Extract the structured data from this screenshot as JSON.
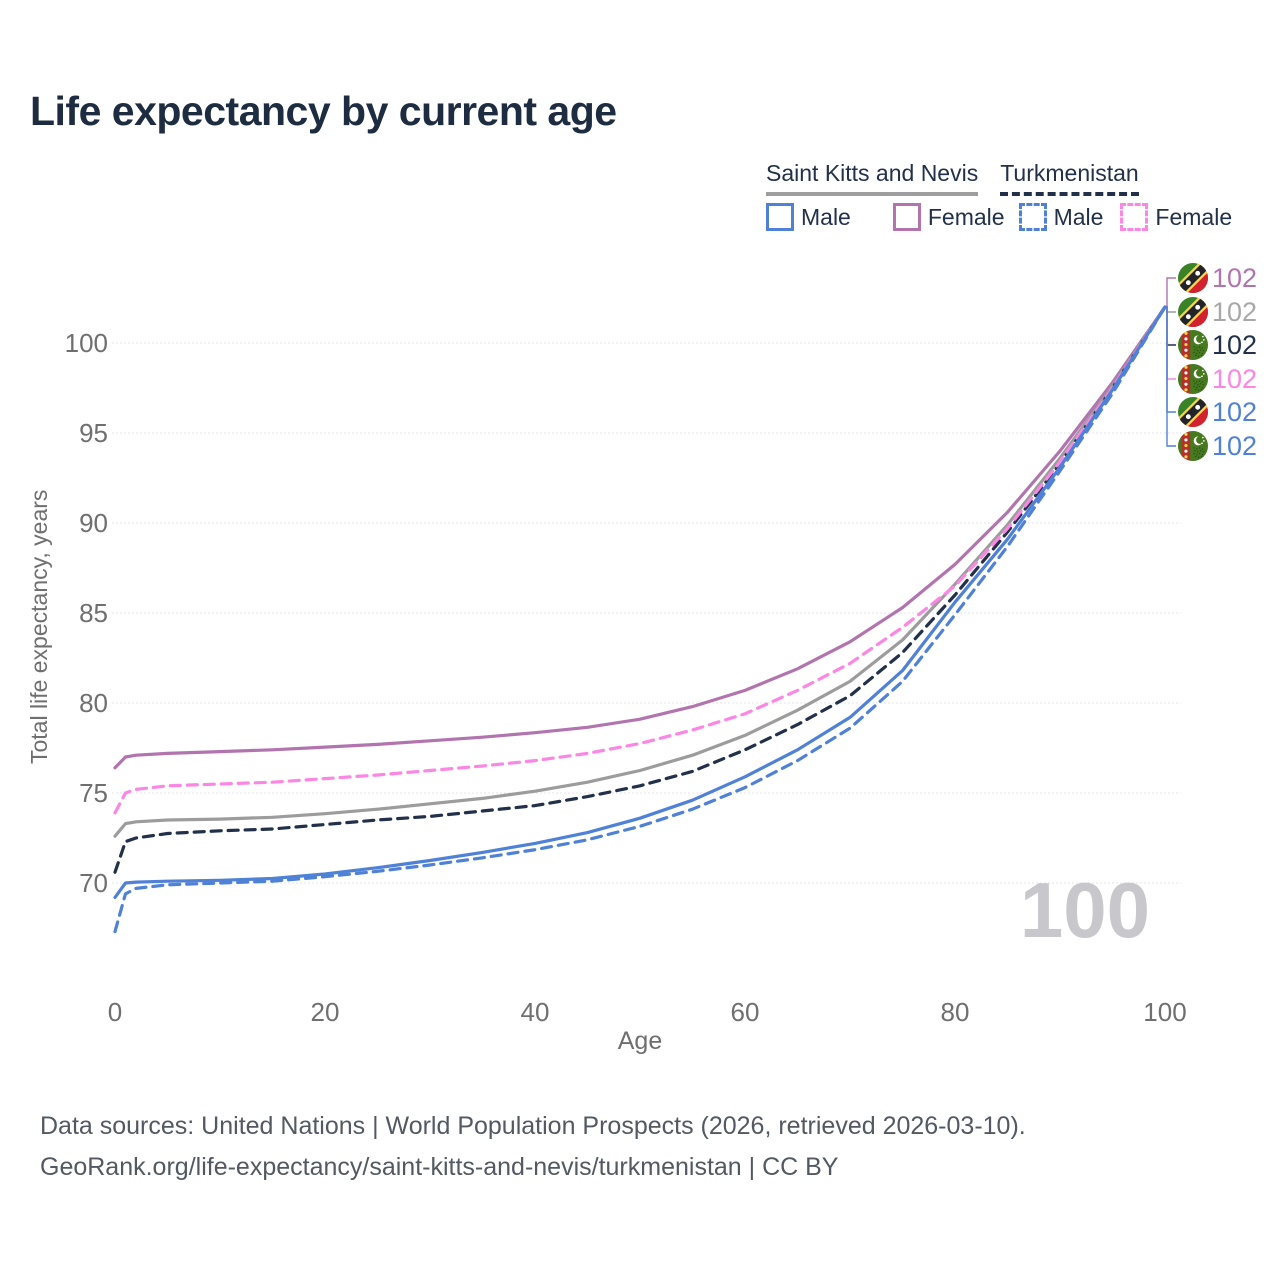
{
  "title": "Life expectancy by current age",
  "legend": {
    "groups": [
      {
        "label": "Saint Kitts and Nevis",
        "underline": "solid",
        "color": "#9e9e9e"
      },
      {
        "label": "Turkmenistan",
        "underline": "dashed",
        "color": "#22304a"
      }
    ],
    "items": [
      {
        "label": "Male",
        "color": "#4f81d6",
        "dashed": false
      },
      {
        "label": "Female",
        "color": "#b274ae",
        "dashed": false
      },
      {
        "label": "Male",
        "color": "#4f81d6",
        "dashed": true
      },
      {
        "label": "Female",
        "color": "#fb86e3",
        "dashed": true
      }
    ]
  },
  "chart_data": {
    "type": "line",
    "title": "Life expectancy by current age",
    "xlabel": "Age",
    "ylabel": "Total life expectancy, years",
    "xlim": [
      0,
      100
    ],
    "ylim": [
      66,
      103
    ],
    "x_ticks": [
      0,
      20,
      40,
      60,
      80,
      100
    ],
    "y_ticks": [
      70,
      75,
      80,
      85,
      90,
      95,
      100
    ],
    "grid": "horizontal",
    "legend_position": "top-right",
    "x": [
      0,
      1,
      2,
      5,
      10,
      15,
      20,
      25,
      30,
      35,
      40,
      45,
      50,
      55,
      60,
      65,
      70,
      75,
      80,
      85,
      90,
      95,
      100
    ],
    "series": [
      {
        "id": "skn-female",
        "name": "Saint Kitts and Nevis — Female",
        "country": "Saint Kitts and Nevis",
        "sex": "Female",
        "flag": "kn",
        "color": "#b274ae",
        "dashed": false,
        "label_color": "#b274ae",
        "end_label": "102",
        "values": [
          76.4,
          77,
          77.1,
          77.2,
          77.3,
          77.4,
          77.55,
          77.7,
          77.9,
          78.1,
          78.35,
          78.65,
          79.1,
          79.8,
          80.7,
          81.9,
          83.4,
          85.3,
          87.7,
          90.6,
          94,
          97.8,
          102
        ]
      },
      {
        "id": "skn-total",
        "name": "Saint Kitts and Nevis — Both sexes",
        "country": "Saint Kitts and Nevis",
        "sex": "Both",
        "flag": "kn",
        "color": "#9c9c9c",
        "dashed": false,
        "label_color": "#a8a8a8",
        "end_label": "102",
        "values": [
          72.6,
          73.3,
          73.4,
          73.5,
          73.55,
          73.65,
          73.85,
          74.1,
          74.4,
          74.7,
          75.1,
          75.6,
          76.25,
          77.1,
          78.2,
          79.6,
          81.2,
          83.5,
          86.6,
          89.9,
          93.6,
          97.6,
          102
        ]
      },
      {
        "id": "tm-total",
        "name": "Turkmenistan — Both sexes",
        "country": "Turkmenistan",
        "sex": "Both",
        "flag": "tm",
        "color": "#22304a",
        "dashed": true,
        "label_color": "#22304a",
        "end_label": "102",
        "values": [
          70.6,
          72.3,
          72.5,
          72.75,
          72.9,
          73,
          73.25,
          73.5,
          73.7,
          74,
          74.3,
          74.8,
          75.4,
          76.2,
          77.4,
          78.8,
          80.4,
          82.8,
          86,
          89.5,
          93.3,
          97.5,
          102
        ]
      },
      {
        "id": "tm-female",
        "name": "Turkmenistan — Female",
        "country": "Turkmenistan",
        "sex": "Female",
        "flag": "tm",
        "color": "#fb86e3",
        "dashed": true,
        "label_color": "#fb86e3",
        "end_label": "102",
        "values": [
          73.9,
          75,
          75.2,
          75.4,
          75.5,
          75.6,
          75.8,
          76,
          76.25,
          76.5,
          76.8,
          77.2,
          77.75,
          78.5,
          79.4,
          80.7,
          82.2,
          84.2,
          86.5,
          89.7,
          93.4,
          97.5,
          102
        ]
      },
      {
        "id": "skn-male",
        "name": "Saint Kitts and Nevis — Male",
        "country": "Saint Kitts and Nevis",
        "sex": "Male",
        "flag": "kn",
        "color": "#4f81d6",
        "dashed": false,
        "label_color": "#4f81d6",
        "end_label": "102",
        "values": [
          69.2,
          70,
          70.05,
          70.1,
          70.15,
          70.25,
          70.5,
          70.85,
          71.25,
          71.7,
          72.2,
          72.8,
          73.6,
          74.6,
          75.9,
          77.4,
          79.2,
          81.8,
          85.6,
          89.1,
          93.1,
          97.4,
          102
        ]
      },
      {
        "id": "tm-male",
        "name": "Turkmenistan — Male",
        "country": "Turkmenistan",
        "sex": "Male",
        "flag": "tm",
        "color": "#4f81d6",
        "dashed": true,
        "label_color": "#4f81d6",
        "end_label": "102",
        "values": [
          67.3,
          69.4,
          69.7,
          69.9,
          70,
          70.1,
          70.35,
          70.65,
          71,
          71.4,
          71.85,
          72.4,
          73.15,
          74.1,
          75.3,
          76.8,
          78.6,
          81.2,
          84.9,
          88.7,
          92.9,
          97.2,
          102
        ]
      }
    ]
  },
  "watermark_age": "100",
  "footer": {
    "line1": "Data sources: United Nations | World Population Prospects (2026, retrieved 2026-03-10).",
    "line2": "GeoRank.org/life-expectancy/saint-kitts-and-nevis/turkmenistan | CC BY"
  }
}
